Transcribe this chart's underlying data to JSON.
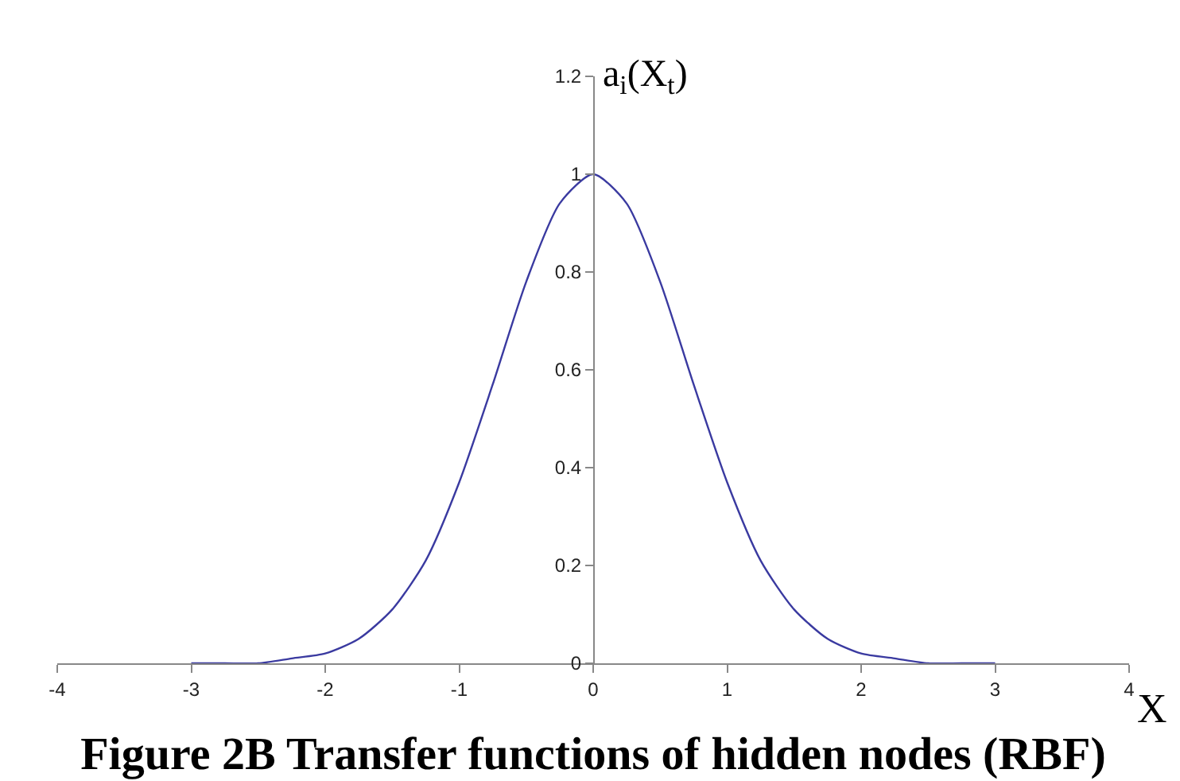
{
  "chart_data": {
    "type": "line",
    "title": "Figure 2B Transfer functions of hidden nodes (RBF)",
    "xlabel": "X",
    "ylabel": "a$_{i}$(X$_{t}$)",
    "x": [
      -3,
      -2.75,
      -2.5,
      -2.25,
      -2,
      -1.75,
      -1.5,
      -1.25,
      -1,
      -0.75,
      -0.5,
      -0.25,
      0,
      0.25,
      0.5,
      0.75,
      1,
      1.25,
      1.5,
      1.75,
      2,
      2.25,
      2.5,
      2.75,
      3
    ],
    "series": [
      {
        "color": "#3a3aa0",
        "values": [
          0,
          0,
          0,
          0.01,
          0.02,
          0.05,
          0.11,
          0.21,
          0.37,
          0.57,
          0.78,
          0.94,
          1,
          0.94,
          0.78,
          0.57,
          0.37,
          0.21,
          0.11,
          0.05,
          0.02,
          0.01,
          0,
          0,
          0
        ]
      }
    ],
    "xlim": [
      -4,
      4
    ],
    "xticks": [
      -4,
      -3,
      -2,
      -1,
      0,
      1,
      2,
      3,
      4
    ],
    "ylim": [
      0,
      1.2
    ],
    "yticks": [
      0,
      0.2,
      0.4,
      0.6,
      0.8,
      1,
      1.2
    ],
    "grid": false,
    "marker": "none",
    "line_style": "solid"
  }
}
